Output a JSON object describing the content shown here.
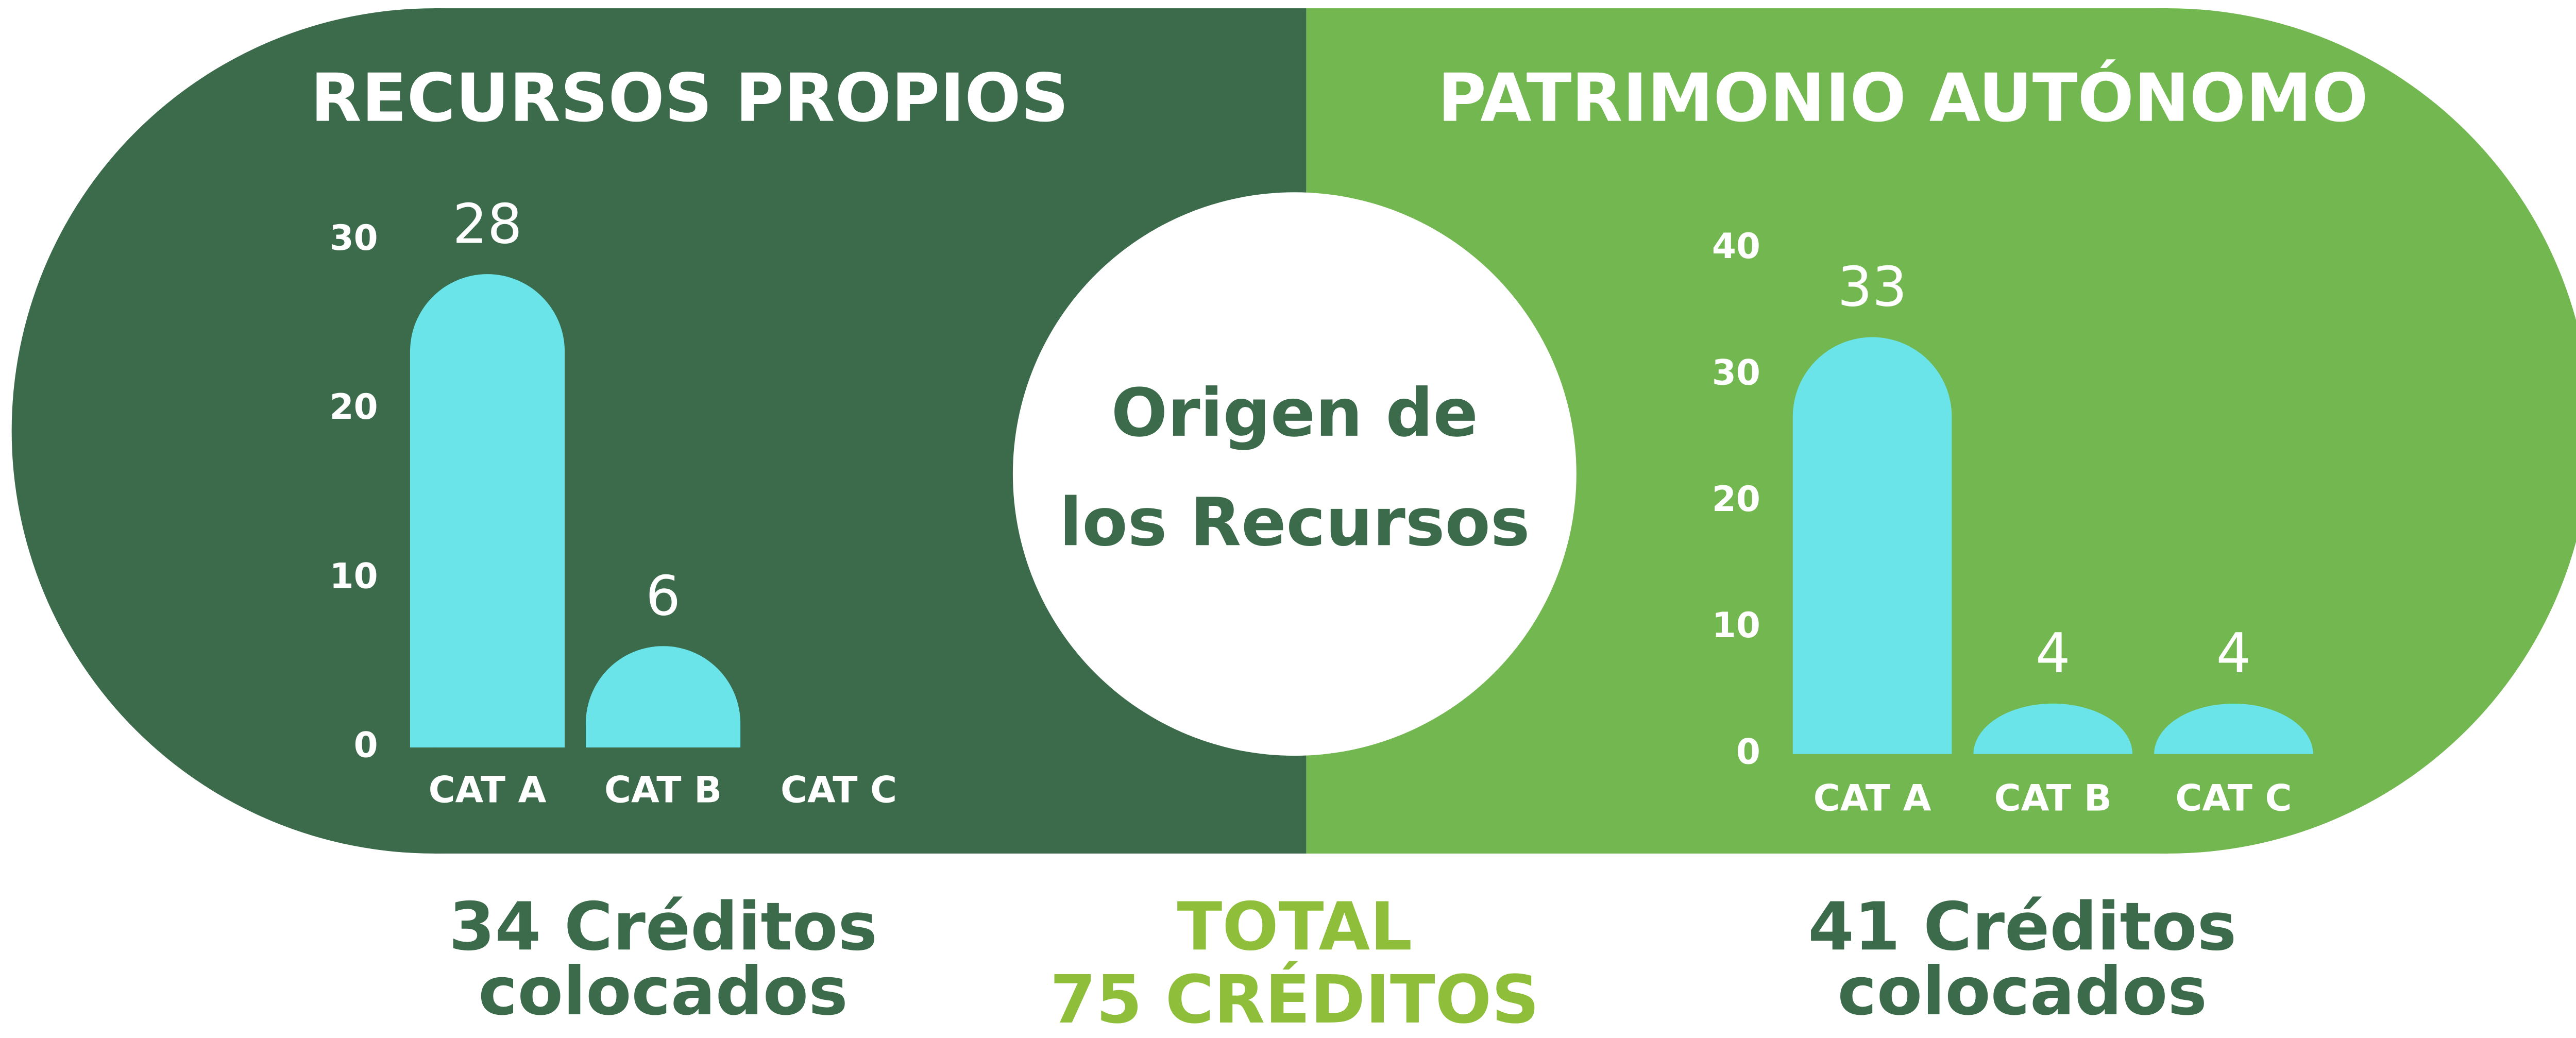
{
  "chart_data": [
    {
      "type": "bar",
      "title": "RECURSOS PROPIOS",
      "categories": [
        "CAT A",
        "CAT B",
        "CAT C"
      ],
      "values": [
        28,
        6,
        null
      ],
      "color": "#6ae4e8",
      "ylim": [
        0,
        30
      ],
      "yticks": [
        0,
        10,
        20,
        30
      ],
      "grid": false
    },
    {
      "type": "bar",
      "title": "PATRIMONIO AUTÓNOMO",
      "categories": [
        "CAT A",
        "CAT B",
        "CAT C"
      ],
      "values": [
        33,
        4,
        4
      ],
      "color": "#6ae4e8",
      "ylim": [
        0,
        40
      ],
      "yticks": [
        0,
        10,
        20,
        30,
        40
      ],
      "grid": false
    }
  ],
  "center": [
    "Origen de",
    "los Recursos"
  ],
  "summaries": [
    [
      "34 Créditos",
      "colocados"
    ],
    [
      "41 Créditos",
      "colocados"
    ]
  ],
  "total": [
    "TOTAL",
    "75 CRÉDITOS"
  ]
}
